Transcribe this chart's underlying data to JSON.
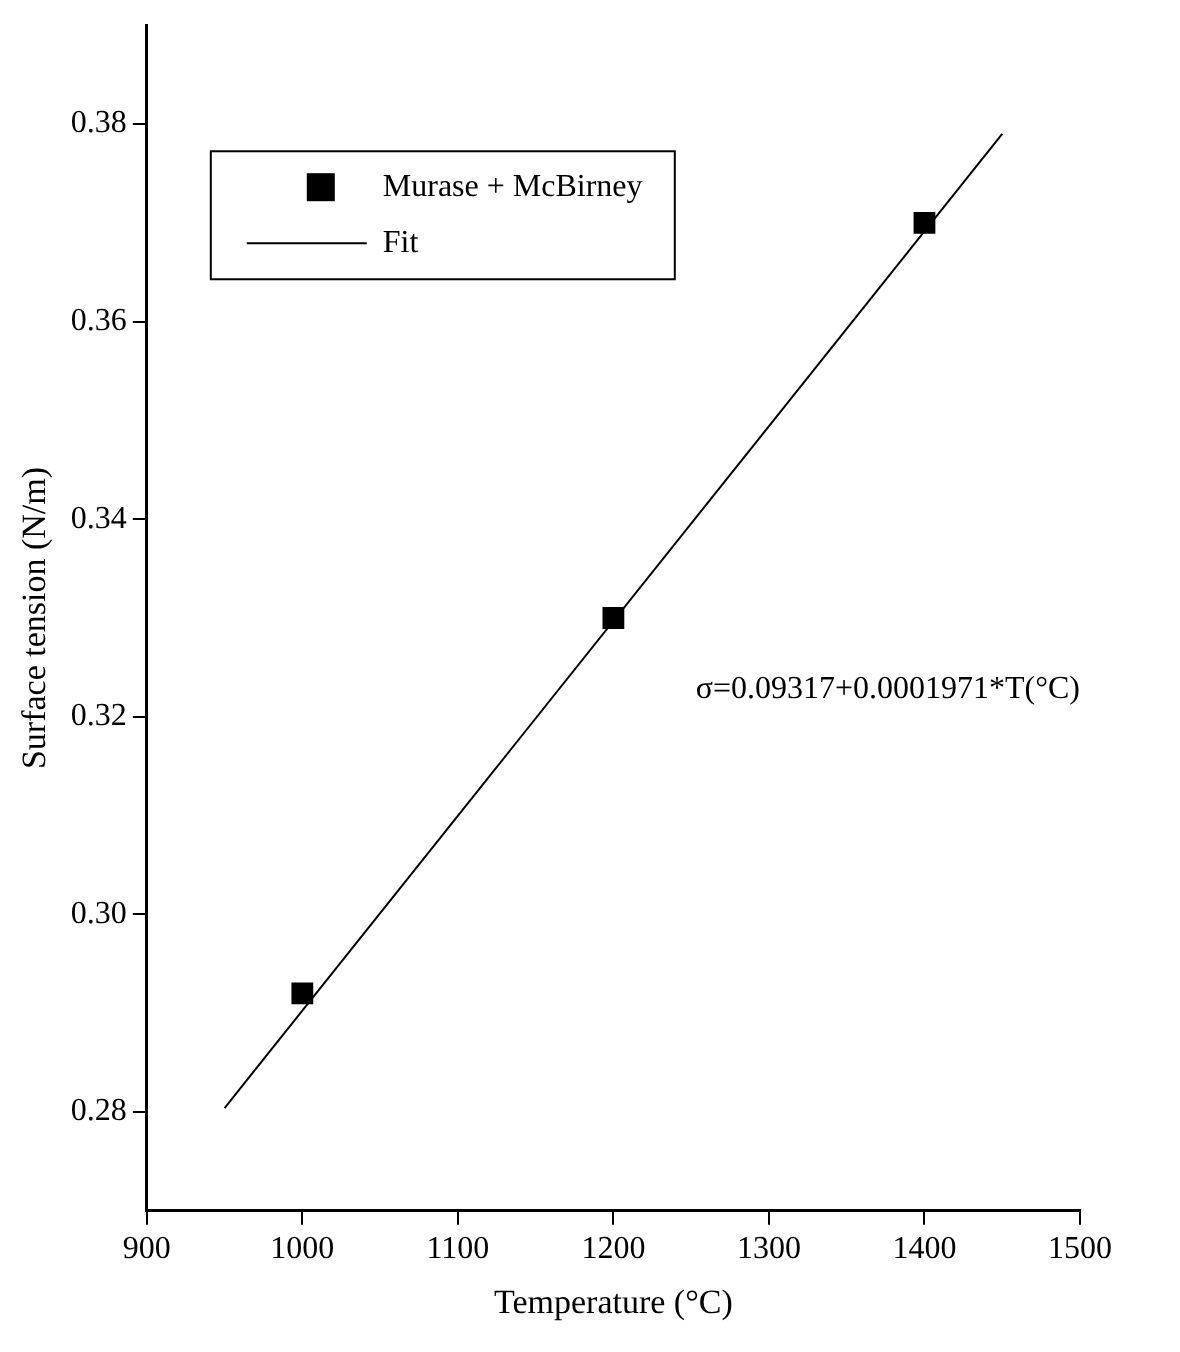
{
  "chart_data": {
    "type": "scatter",
    "xlabel": "Temperature (°C)",
    "ylabel": "Surface tension (N/m)",
    "xlim": [
      900,
      1500
    ],
    "xticks": [
      900,
      1000,
      1100,
      1200,
      1300,
      1400,
      1500
    ],
    "ylim": [
      0.27,
      0.39
    ],
    "yticks": [
      {
        "value": 0.28,
        "label": "0.28"
      },
      {
        "value": 0.3,
        "label": "0.30"
      },
      {
        "value": 0.32,
        "label": "0.32"
      },
      {
        "value": 0.34,
        "label": "0.34"
      },
      {
        "value": 0.36,
        "label": "0.36"
      },
      {
        "value": 0.38,
        "label": "0.38"
      }
    ],
    "grid": false,
    "legend": "top left",
    "annotations": [
      "σ=0.09317+0.0001971*T(°C)"
    ],
    "series": [
      {
        "name": "Murase + McBirney",
        "type": "scatter",
        "marker": "square",
        "color": "#000000",
        "x": [
          1000,
          1200,
          1400
        ],
        "values": [
          0.292,
          0.33,
          0.37
        ]
      },
      {
        "name": "Fit",
        "type": "line",
        "color": "#000000",
        "line_style": "solid",
        "marker": "none",
        "x": [
          950,
          1450
        ],
        "values": [
          0.2804,
          0.379
        ]
      }
    ]
  }
}
